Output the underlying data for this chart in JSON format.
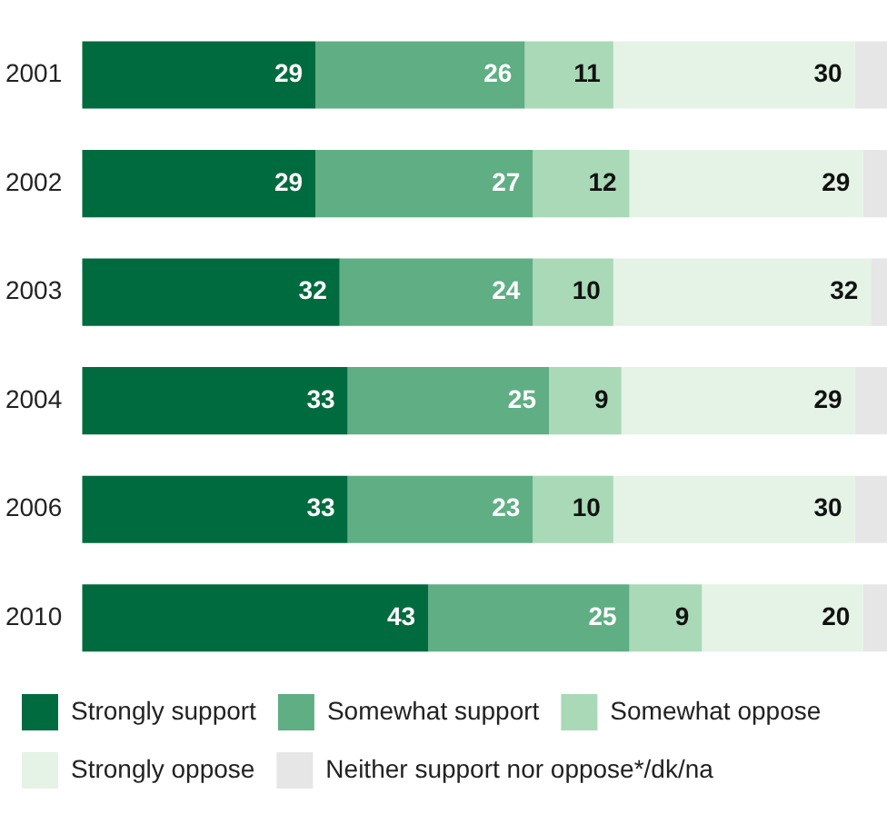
{
  "chart_data": {
    "type": "bar",
    "orientation": "horizontal",
    "stacked": true,
    "categories": [
      "2001",
      "2002",
      "2003",
      "2004",
      "2006",
      "2010"
    ],
    "series": [
      {
        "name": "Strongly support",
        "color": "#006b3f",
        "values": [
          29,
          29,
          32,
          33,
          33,
          43
        ],
        "value_labels": [
          "29",
          "29",
          "32",
          "33",
          "33",
          "43"
        ]
      },
      {
        "name": "Somewhat support",
        "color": "#5fae84",
        "values": [
          26,
          27,
          24,
          25,
          23,
          25
        ],
        "value_labels": [
          "26",
          "27",
          "24",
          "25",
          "23",
          "25"
        ]
      },
      {
        "name": "Somewhat oppose",
        "color": "#a9d9b6",
        "values": [
          11,
          12,
          10,
          9,
          10,
          9
        ],
        "value_labels": [
          "11",
          "12",
          "10",
          "9",
          "10",
          "9"
        ]
      },
      {
        "name": "Strongly oppose",
        "color": "#e4f3e6",
        "values": [
          30,
          29,
          32,
          29,
          30,
          20
        ],
        "value_labels": [
          "30",
          "29",
          "32",
          "29",
          "30",
          "20"
        ]
      },
      {
        "name": "Neither support nor oppose*/dk/na",
        "color": "#e6e6e6",
        "values": [
          4,
          3,
          2,
          4,
          4,
          3
        ]
      }
    ],
    "xlim": [
      0,
      100
    ],
    "tick_labels": "y",
    "legend": "bottom"
  }
}
